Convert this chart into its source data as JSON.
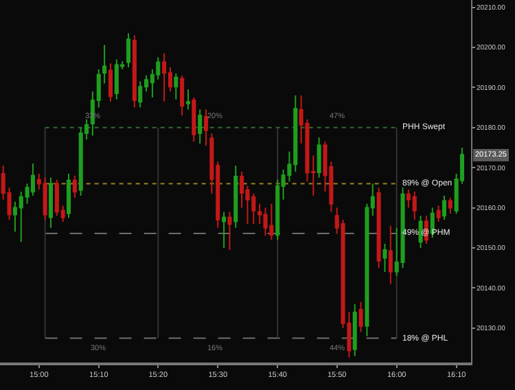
{
  "chart_data": {
    "type": "candlestick",
    "x": [
      14.9,
      14.917,
      14.933,
      14.95,
      14.967,
      14.983,
      15,
      15.017,
      15.033,
      15.05,
      15.067,
      15.083,
      15.1,
      15.117,
      15.133,
      15.15,
      15.167,
      15.183,
      15.2,
      15.217,
      15.233,
      15.25,
      15.267,
      15.283,
      15.3,
      15.317,
      15.333,
      15.35,
      15.367,
      15.383,
      15.4,
      15.417,
      15.433,
      15.45,
      15.467,
      15.483,
      15.5,
      15.517,
      15.533,
      15.55,
      15.567,
      15.583,
      15.6,
      15.617,
      15.633,
      15.65,
      15.667,
      15.683,
      15.7,
      15.717,
      15.733,
      15.75,
      15.767,
      15.783,
      15.8,
      15.817,
      15.833,
      15.85,
      15.867,
      15.883,
      15.9,
      15.917,
      15.933,
      15.95,
      15.967,
      15.983,
      16,
      16.017,
      16.033,
      16.05,
      16.067,
      16.083,
      16.1,
      16.117,
      16.133,
      16.15,
      16.167,
      16.183
    ],
    "ohlc": [
      [
        20168.5,
        20170.5,
        20162,
        20163.7
      ],
      [
        20163.7,
        20165,
        20157,
        20158.3
      ],
      [
        20158.3,
        20161.5,
        20154,
        20160
      ],
      [
        20160,
        20164,
        20151.5,
        20162.7
      ],
      [
        20162.7,
        20166,
        20161,
        20165
      ],
      [
        20164,
        20171,
        20163,
        20168
      ],
      [
        20167,
        20168.5,
        20164.5,
        20166
      ],
      [
        20166,
        20167.5,
        20157,
        20158.3
      ],
      [
        20157.6,
        20167.5,
        20155,
        20166
      ],
      [
        20166,
        20167,
        20158,
        20159
      ],
      [
        20159.3,
        20160.5,
        20156.5,
        20157.6
      ],
      [
        20158.6,
        20168.5,
        20157.5,
        20166.8
      ],
      [
        20166.8,
        20168,
        20162.5,
        20164
      ],
      [
        20164.4,
        20180,
        20163,
        20178.6
      ],
      [
        20178.6,
        20182,
        20177,
        20180.7
      ],
      [
        20181,
        20189,
        20178,
        20186.8
      ],
      [
        20186.8,
        20194.5,
        20185,
        20193.2
      ],
      [
        20193.6,
        20200.6,
        20191,
        20195.3
      ],
      [
        20194.2,
        20196,
        20186.5,
        20187.8
      ],
      [
        20188.5,
        20197,
        20187,
        20195.6
      ],
      [
        20195.3,
        20196.5,
        20194.5,
        20195.6
      ],
      [
        20196.3,
        20203.5,
        20195,
        20202
      ],
      [
        20201.7,
        20203,
        20185,
        20186.8
      ],
      [
        20186.4,
        20191.5,
        20185,
        20190.2
      ],
      [
        20190.2,
        20193,
        20189,
        20191.9
      ],
      [
        20191.2,
        20194.5,
        20187.5,
        20193.2
      ],
      [
        20193.2,
        20197.5,
        20192,
        20196.3
      ],
      [
        20196.3,
        20198.5,
        20186.5,
        20193.6
      ],
      [
        20193.6,
        20195,
        20189,
        20190.2
      ],
      [
        20190.2,
        20193.5,
        20187,
        20192.5
      ],
      [
        20192.2,
        20193,
        20183,
        20185.4
      ],
      [
        20186,
        20189.5,
        20184.5,
        20186.4
      ],
      [
        20186.8,
        20187.5,
        20176.5,
        20178.3
      ],
      [
        20178.6,
        20184.5,
        20176,
        20183
      ],
      [
        20182.7,
        20184.5,
        20175.5,
        20179.3
      ],
      [
        20177.3,
        20178.5,
        20163.5,
        20167.1
      ],
      [
        20170.5,
        20171.5,
        20155,
        20157
      ],
      [
        20156.6,
        20159,
        20150,
        20157.6
      ],
      [
        20157.6,
        20159,
        20149.5,
        20155.9
      ],
      [
        20156.6,
        20170.5,
        20155,
        20167.8
      ],
      [
        20167.8,
        20169,
        20160,
        20163.7
      ],
      [
        20164.4,
        20165.5,
        20156,
        20162
      ],
      [
        20162.7,
        20163.5,
        20156,
        20159.3
      ],
      [
        20159,
        20161,
        20156,
        20158.3
      ],
      [
        20158.3,
        20160,
        20153,
        20155
      ],
      [
        20155.5,
        20161,
        20152,
        20153.2
      ],
      [
        20153.2,
        20167,
        20152,
        20165.4
      ],
      [
        20165.4,
        20169.5,
        20162,
        20168.1
      ],
      [
        20168.1,
        20174,
        20166.5,
        20170.8
      ],
      [
        20170.8,
        20188,
        20169,
        20184.7
      ],
      [
        20184.4,
        20188,
        20176,
        20180.7
      ],
      [
        20181,
        20182,
        20166.5,
        20168.8
      ],
      [
        20169,
        20173,
        20163,
        20168.8
      ],
      [
        20168.8,
        20177.5,
        20167.5,
        20175.6
      ],
      [
        20175.6,
        20176.5,
        20164,
        20168.1
      ],
      [
        20170.2,
        20171.5,
        20159,
        20161
      ],
      [
        20158,
        20160,
        20153.5,
        20155
      ],
      [
        20156,
        20157,
        20130,
        20131.2
      ],
      [
        20131.2,
        20134,
        20122.7,
        20124.4
      ],
      [
        20124.7,
        20136,
        20123,
        20133.9
      ],
      [
        20134.6,
        20136.5,
        20129,
        20130.5
      ],
      [
        20130.5,
        20161,
        20128,
        20160
      ],
      [
        20160,
        20166,
        20158,
        20162.7
      ],
      [
        20163.7,
        20165,
        20145,
        20146.8
      ],
      [
        20147.5,
        20151,
        20144,
        20149.5
      ],
      [
        20149.2,
        20155.5,
        20141,
        20144.1
      ],
      [
        20144.1,
        20155,
        20143,
        20146.4
      ],
      [
        20146.4,
        20165,
        20145,
        20163.4
      ],
      [
        20163.4,
        20164.5,
        20160,
        20162
      ],
      [
        20162.7,
        20164,
        20157,
        20159.3
      ],
      [
        20151.5,
        20158,
        20150,
        20156.6
      ],
      [
        20156.6,
        20158,
        20151,
        20152
      ],
      [
        20153.6,
        20160,
        20152.5,
        20158.6
      ],
      [
        20159.3,
        20160.5,
        20156.5,
        20157.6
      ],
      [
        20158,
        20163,
        20157,
        20161.7
      ],
      [
        20161.7,
        20162.5,
        20158.5,
        20160
      ],
      [
        20159.3,
        20168.5,
        20158.5,
        20167.1
      ],
      [
        20166.8,
        20175,
        20166,
        20173.25
      ]
    ],
    "colors": [
      "#c41818",
      "#c41818",
      "#1f9e1f",
      "#1f9e1f",
      "#1f9e1f",
      "#1f9e1f",
      "#c41818",
      "#c41818",
      "#1f9e1f",
      "#c41818",
      "#c41818",
      "#1f9e1f",
      "#c41818",
      "#1f9e1f",
      "#1f9e1f",
      "#1f9e1f",
      "#1f9e1f",
      "#1f9e1f",
      "#c41818",
      "#1f9e1f",
      "#1f9e1f",
      "#1f9e1f",
      "#c41818",
      "#1f9e1f",
      "#1f9e1f",
      "#1f9e1f",
      "#1f9e1f",
      "#c41818",
      "#c41818",
      "#1f9e1f",
      "#c41818",
      "#1f9e1f",
      "#c41818",
      "#1f9e1f",
      "#c41818",
      "#c41818",
      "#c41818",
      "#1f9e1f",
      "#c41818",
      "#1f9e1f",
      "#c41818",
      "#c41818",
      "#c41818",
      "#c41818",
      "#c41818",
      "#c41818",
      "#1f9e1f",
      "#1f9e1f",
      "#1f9e1f",
      "#1f9e1f",
      "#c41818",
      "#c41818",
      "#c41818",
      "#1f9e1f",
      "#c41818",
      "#c41818",
      "#c41818",
      "#c41818",
      "#c41818",
      "#1f9e1f",
      "#c41818",
      "#1f9e1f",
      "#1f9e1f",
      "#c41818",
      "#1f9e1f",
      "#c41818",
      "#1f9e1f",
      "#1f9e1f",
      "#c41818",
      "#c41818",
      "#1f9e1f",
      "#c41818",
      "#1f9e1f",
      "#c41818",
      "#1f9e1f",
      "#c41818",
      "#1f9e1f",
      "#1f9e1f"
    ],
    "xlim": [
      14.891,
      16.208
    ],
    "xticks": [
      {
        "value": 15,
        "label": "15:00"
      },
      {
        "value": 15.167,
        "label": "15:10"
      },
      {
        "value": 15.333,
        "label": "15:20"
      },
      {
        "value": 15.5,
        "label": "15:30"
      },
      {
        "value": 15.667,
        "label": "15:40"
      },
      {
        "value": 15.833,
        "label": "15:50"
      },
      {
        "value": 16,
        "label": "16:00"
      },
      {
        "value": 16.167,
        "label": "16:10"
      }
    ],
    "ylim": [
      20121.4,
      20211.8
    ],
    "yticks": [
      {
        "value": 20130,
        "label": "20130.00"
      },
      {
        "value": 20140,
        "label": "20140.00"
      },
      {
        "value": 20150,
        "label": "20150.00"
      },
      {
        "value": 20160,
        "label": "20160.00"
      },
      {
        "value": 20170,
        "label": "20170.00"
      },
      {
        "value": 20180,
        "label": "20180.00"
      },
      {
        "value": 20190,
        "label": "20190.00"
      },
      {
        "value": 20200,
        "label": "20200.00"
      },
      {
        "value": 20210,
        "label": "20210.00"
      }
    ],
    "ref_lines": [
      {
        "axis": "y",
        "value": 20180,
        "label": "PHH Swept",
        "color": "#2f6e2f",
        "line_style": "dotted"
      },
      {
        "axis": "y",
        "value": 20166,
        "label": "89% @ Open",
        "color": "#a0821e",
        "line_style": "dotted"
      },
      {
        "axis": "y",
        "value": 20153.6,
        "label": "49% @ PHM",
        "color": "#6e6e6e",
        "line_style": "dashed"
      },
      {
        "axis": "y",
        "value": 20127.5,
        "label": "18% @ PHL",
        "color": "#6e6e6e",
        "line_style": "dashed"
      },
      {
        "axis": "x",
        "value": 15.017,
        "color": "#333333",
        "line_style": "solid"
      },
      {
        "axis": "x",
        "value": 15.333,
        "color": "#333333",
        "line_style": "solid"
      },
      {
        "axis": "x",
        "value": 15.667,
        "color": "#333333",
        "line_style": "solid"
      },
      {
        "axis": "x",
        "value": 16,
        "color": "#333333",
        "line_style": "solid"
      }
    ],
    "annotations": [
      {
        "text": "33%",
        "x": 15.15,
        "y": 20180
      },
      {
        "text": "20%",
        "x": 15.493,
        "y": 20180
      },
      {
        "text": "47%",
        "x": 15.832,
        "y": 20180
      },
      {
        "text": "30%",
        "x": 15.166,
        "y": 20127.5
      },
      {
        "text": "16%",
        "x": 15.493,
        "y": 20127.5
      },
      {
        "text": "44%",
        "x": 15.832,
        "y": 20127.5
      },
      {
        "text": "20173.25",
        "x": 16.183,
        "y": 20173.25
      }
    ],
    "grid": false
  }
}
